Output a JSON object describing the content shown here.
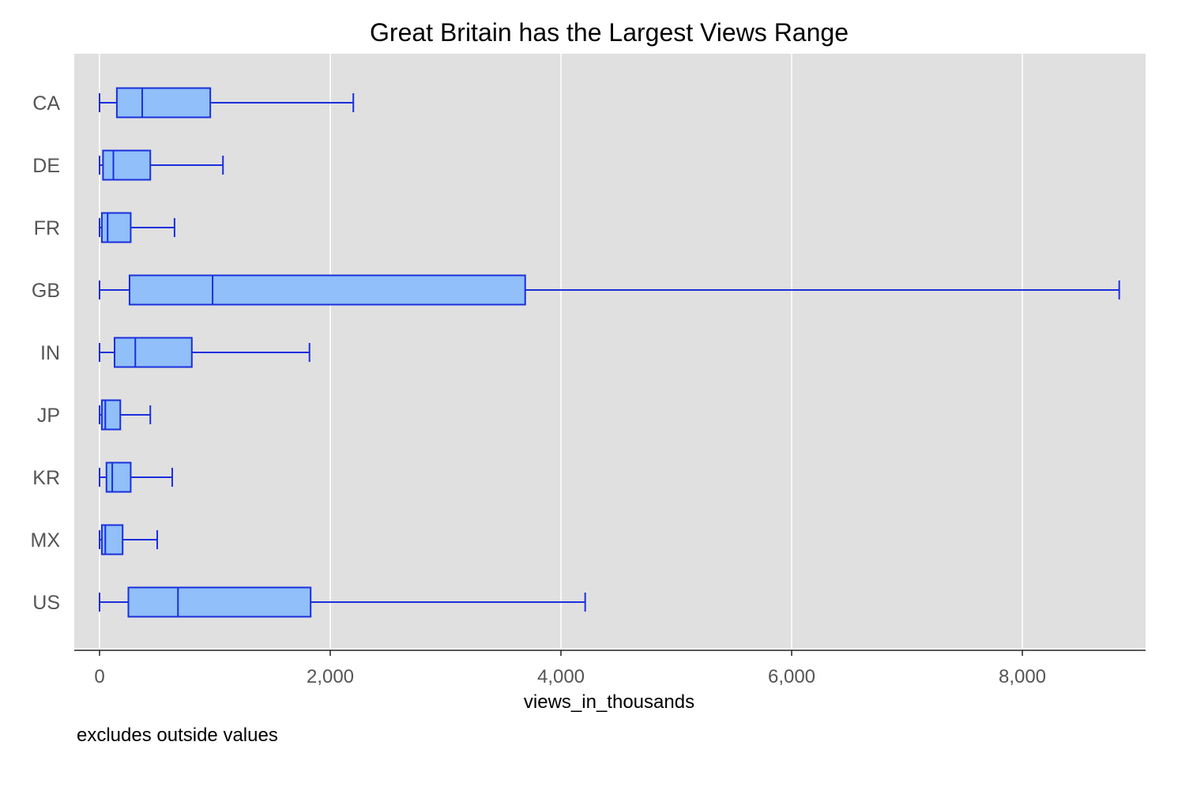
{
  "chart_data": {
    "type": "boxplot",
    "orientation": "horizontal",
    "title": "Great Britain has the Largest Views Range",
    "xlabel": "views_in_thousands",
    "ylabel": "",
    "note": "excludes outside values",
    "xlim": [
      -110,
      9000
    ],
    "xticks": [
      0,
      2000,
      4000,
      6000,
      8000
    ],
    "xtick_labels": [
      "0",
      "2,000",
      "4,000",
      "6,000",
      "8,000"
    ],
    "grid": true,
    "background_color": "#e0e0e0",
    "box_fill": "#90bff9",
    "box_stroke": "#1a2fdc",
    "grid_color": "#ffffff",
    "categories": [
      "CA",
      "DE",
      "FR",
      "GB",
      "IN",
      "JP",
      "KR",
      "MX",
      "US"
    ],
    "boxes": [
      {
        "label": "CA",
        "min": 0,
        "q1": 150,
        "median": 370,
        "q3": 960,
        "max": 2200
      },
      {
        "label": "DE",
        "min": 0,
        "q1": 30,
        "median": 120,
        "q3": 440,
        "max": 1070
      },
      {
        "label": "FR",
        "min": 0,
        "q1": 20,
        "median": 70,
        "q3": 270,
        "max": 650
      },
      {
        "label": "GB",
        "min": 0,
        "q1": 260,
        "median": 980,
        "q3": 3690,
        "max": 8840
      },
      {
        "label": "IN",
        "min": 0,
        "q1": 130,
        "median": 310,
        "q3": 800,
        "max": 1820
      },
      {
        "label": "JP",
        "min": 0,
        "q1": 20,
        "median": 50,
        "q3": 180,
        "max": 440
      },
      {
        "label": "KR",
        "min": 0,
        "q1": 60,
        "median": 110,
        "q3": 270,
        "max": 630
      },
      {
        "label": "MX",
        "min": 0,
        "q1": 20,
        "median": 50,
        "q3": 200,
        "max": 500
      },
      {
        "label": "US",
        "min": 0,
        "q1": 250,
        "median": 680,
        "q3": 1830,
        "max": 4210
      }
    ]
  }
}
